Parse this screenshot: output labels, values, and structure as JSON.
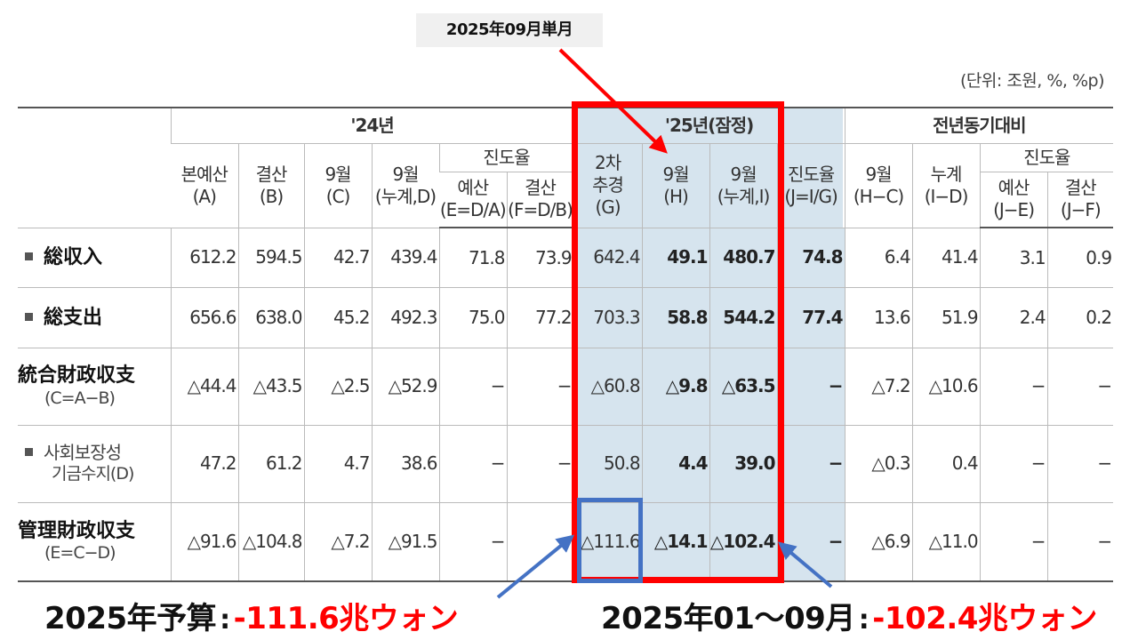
{
  "callout_top": "2025年09月単月",
  "unit_note": "(단위: 조원, %, %p)",
  "header": {
    "group_24": "'24년",
    "group_25": "'25년(잠정)",
    "group_yoy": "전년동기대비",
    "progress": "진도율",
    "cols": {
      "a": [
        "본예산",
        "(A)"
      ],
      "b": [
        "결산",
        "(B)"
      ],
      "c": [
        "9월",
        "(C)"
      ],
      "d": [
        "9월",
        "(누계,D)"
      ],
      "e": [
        "예산",
        "(E=D/A)"
      ],
      "f": [
        "결산",
        "(F=D/B)"
      ],
      "g": [
        "2차",
        "추경",
        "(G)"
      ],
      "h": [
        "9월",
        "(H)"
      ],
      "i": [
        "9월",
        "(누계,I)"
      ],
      "j": [
        "진도율",
        "(J=I/G)"
      ],
      "hc": [
        "9월",
        "(H−C)"
      ],
      "id": [
        "누계",
        "(I−D)"
      ],
      "je": [
        "예산",
        "(J−E)"
      ],
      "jf": [
        "결산",
        "(J−F)"
      ]
    }
  },
  "rows": [
    {
      "label": "総収入",
      "type": "jp-sq",
      "values": [
        "612.2",
        "594.5",
        "42.7",
        "439.4",
        "71.8",
        "73.9",
        "642.4",
        "49.1",
        "480.7",
        "74.8",
        "6.4",
        "41.4",
        "3.1",
        "0.9"
      ]
    },
    {
      "label": "総支出",
      "type": "jp-sq",
      "values": [
        "656.6",
        "638.0",
        "45.2",
        "492.3",
        "75.0",
        "77.2",
        "703.3",
        "58.8",
        "544.2",
        "77.4",
        "13.6",
        "51.9",
        "2.4",
        "0.2"
      ]
    },
    {
      "label": "統合財政収支",
      "sub": "(C=A−B)",
      "type": "jp-sub",
      "values": [
        "△44.4",
        "△43.5",
        "△2.5",
        "△52.9",
        "−",
        "−",
        "△60.8",
        "△9.8",
        "△63.5",
        "−",
        "△7.2",
        "△10.6",
        "−",
        "−"
      ]
    },
    {
      "label": "사회보장성",
      "sub": "기금수지(D)",
      "type": "kr-sq",
      "values": [
        "47.2",
        "61.2",
        "4.7",
        "38.6",
        "−",
        "−",
        "50.8",
        "4.4",
        "39.0",
        "−",
        "△0.3",
        "0.4",
        "−",
        "−"
      ]
    },
    {
      "label": "管理財政収支",
      "sub": "(E=C−D)",
      "type": "jp-sub",
      "values": [
        "△91.6",
        "△104.8",
        "△7.2",
        "△91.5",
        "−",
        "−",
        "△111.6",
        "△14.1",
        "△102.4",
        "−",
        "△6.9",
        "△11.0",
        "−",
        "−"
      ]
    }
  ],
  "caption_left": {
    "label": "2025年予算",
    "colon": ":",
    "value": "-111.6兆ウォン"
  },
  "caption_right": {
    "label": "2025年01～09月",
    "colon": ":",
    "value": "-102.4兆ウォン"
  },
  "colors": {
    "red": "#ff0000",
    "blue": "#4472c4",
    "highlight": "#d6e4ee"
  }
}
